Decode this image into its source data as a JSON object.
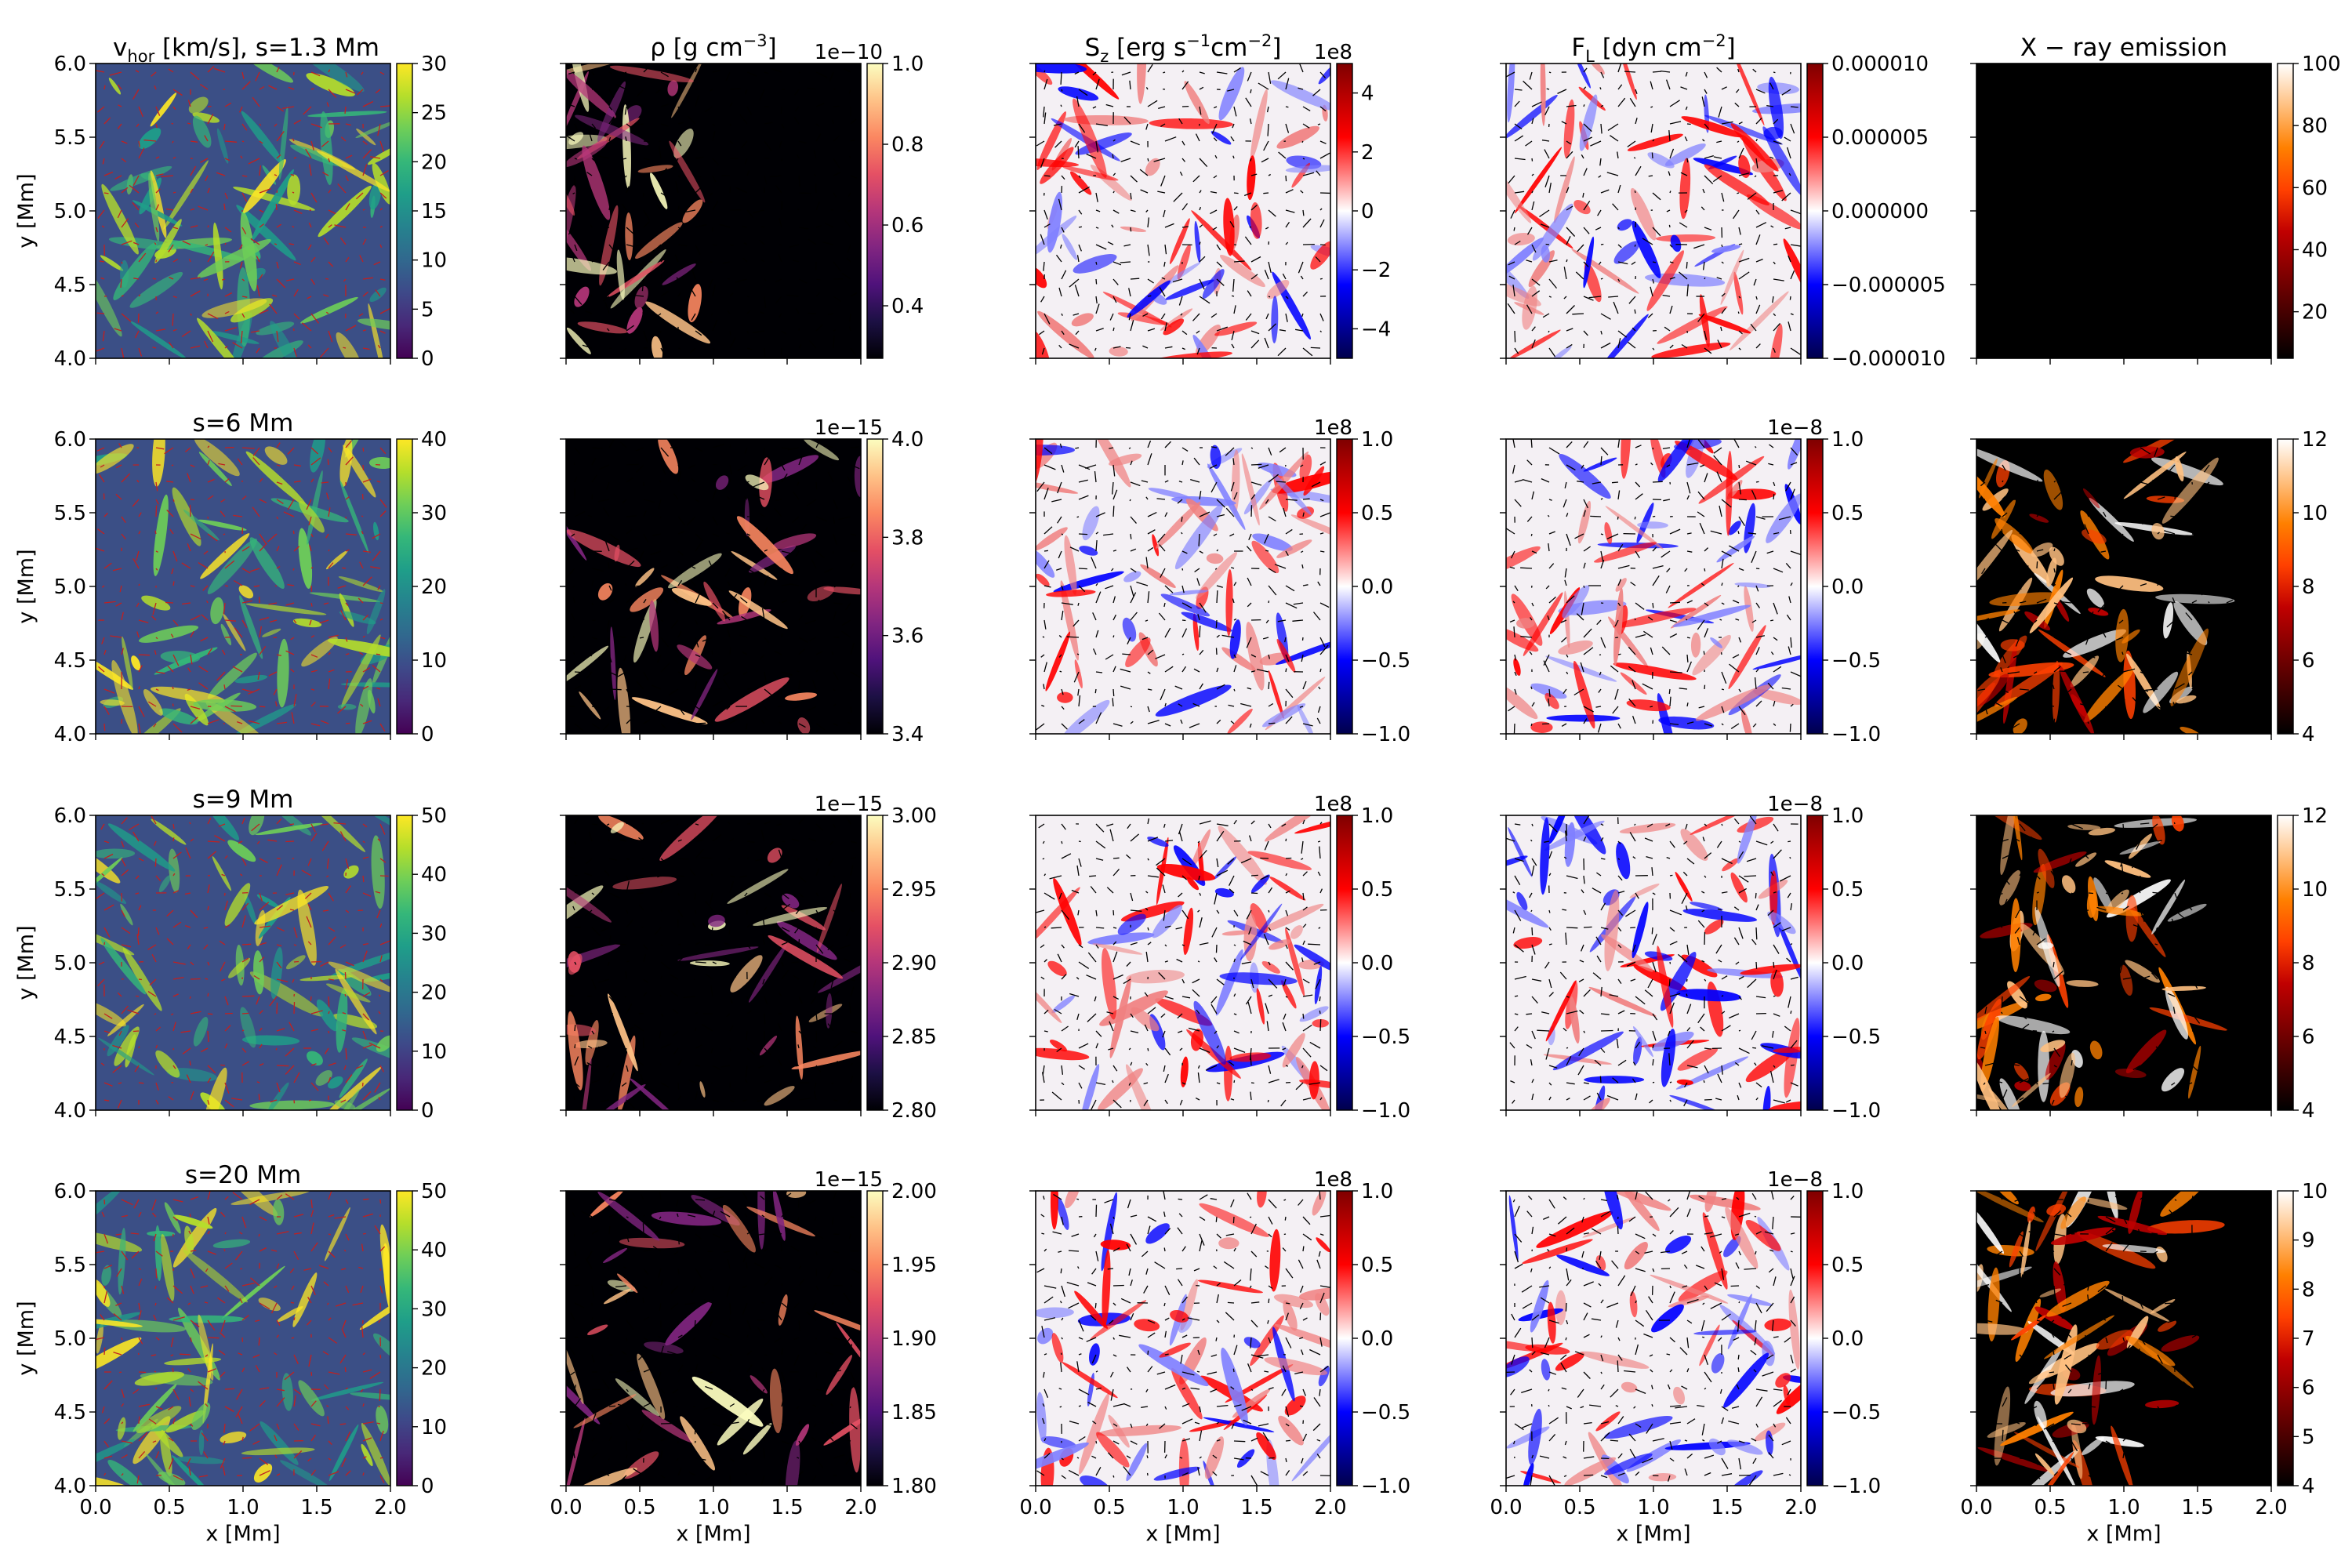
{
  "chart_data": {
    "type": "heatmap",
    "layout": "4 rows x 5 columns of 2D maps with colorbars and arrow overlays",
    "x_axis": {
      "label": "x [Mm]",
      "range": [
        0.0,
        2.0
      ],
      "ticks": [
        "0.0",
        "0.5",
        "1.0",
        "1.5",
        "2.0"
      ]
    },
    "y_axis": {
      "label": "y [Mm]",
      "range": [
        4.0,
        6.0
      ],
      "ticks": [
        "4.0",
        "4.5",
        "5.0",
        "5.5",
        "6.0"
      ]
    },
    "columns": [
      {
        "quantity": "v_hor",
        "title": "v",
        "title_sub": "hor",
        "title_rest": " [km/s],  s=1.3 Mm",
        "colormap": "viridis"
      },
      {
        "quantity": "rho",
        "title": "ρ [g cm",
        "title_sup": "−3",
        "title_rest": "]",
        "colormap": "magma"
      },
      {
        "quantity": "S_z",
        "title": "S",
        "title_sub": "z",
        "title_rest": " [erg s",
        "title_sup": "−1",
        "title_rest2": "cm",
        "title_sup2": "−2",
        "title_rest3": "]",
        "colormap": "seismic"
      },
      {
        "quantity": "F_L",
        "title": "F",
        "title_sub": "L",
        "title_rest": " [dyn cm",
        "title_sup": "−2",
        "title_rest2": "]",
        "colormap": "seismic"
      },
      {
        "quantity": "xray",
        "title": "X − ray emission",
        "colormap": "gist_heat"
      }
    ],
    "row_titles": [
      "",
      "s=6 Mm",
      "s=9 Mm",
      "s=20 Mm"
    ],
    "colorbars": [
      [
        {
          "ticks": [
            "0",
            "5",
            "10",
            "15",
            "20",
            "25",
            "30"
          ],
          "range": [
            0,
            30
          ],
          "exponent": ""
        },
        {
          "ticks": [
            "0.4",
            "0.6",
            "0.8",
            "1.0"
          ],
          "range": [
            0.27,
            1.0
          ],
          "exponent": "1e−10"
        },
        {
          "ticks": [
            "−4",
            "−2",
            "0",
            "2",
            "4"
          ],
          "range": [
            -5,
            5
          ],
          "exponent": "1e8"
        },
        {
          "ticks": [
            "−0.000010",
            "−0.000005",
            "0.000000",
            "0.000005",
            "0.000010"
          ],
          "range": [
            -1e-05,
            1e-05
          ],
          "exponent": ""
        },
        {
          "ticks": [
            "20",
            "40",
            "60",
            "80",
            "100"
          ],
          "range": [
            5,
            100
          ],
          "exponent": ""
        }
      ],
      [
        {
          "ticks": [
            "0",
            "10",
            "20",
            "30",
            "40"
          ],
          "range": [
            0,
            40
          ],
          "exponent": ""
        },
        {
          "ticks": [
            "3.4",
            "3.6",
            "3.8",
            "4.0"
          ],
          "range": [
            3.4,
            4.0
          ],
          "exponent": "1e−15"
        },
        {
          "ticks": [
            "−1.0",
            "−0.5",
            "0.0",
            "0.5",
            "1.0"
          ],
          "range": [
            -1,
            1
          ],
          "exponent": "1e8"
        },
        {
          "ticks": [
            "−1.0",
            "−0.5",
            "0.0",
            "0.5",
            "1.0"
          ],
          "range": [
            -1,
            1
          ],
          "exponent": "1e−8"
        },
        {
          "ticks": [
            "4",
            "6",
            "8",
            "10",
            "12"
          ],
          "range": [
            4,
            12
          ],
          "exponent": ""
        }
      ],
      [
        {
          "ticks": [
            "0",
            "10",
            "20",
            "30",
            "40",
            "50"
          ],
          "range": [
            0,
            50
          ],
          "exponent": ""
        },
        {
          "ticks": [
            "2.80",
            "2.85",
            "2.90",
            "2.95",
            "3.00"
          ],
          "range": [
            2.8,
            3.0
          ],
          "exponent": "1e−15"
        },
        {
          "ticks": [
            "−1.0",
            "−0.5",
            "0.0",
            "0.5",
            "1.0"
          ],
          "range": [
            -1,
            1
          ],
          "exponent": "1e8"
        },
        {
          "ticks": [
            "−1.0",
            "−0.5",
            "0.0",
            "0.5",
            "1.0"
          ],
          "range": [
            -1,
            1
          ],
          "exponent": "1e−8"
        },
        {
          "ticks": [
            "4",
            "6",
            "8",
            "10",
            "12"
          ],
          "range": [
            4,
            12
          ],
          "exponent": ""
        }
      ],
      [
        {
          "ticks": [
            "0",
            "10",
            "20",
            "30",
            "40",
            "50"
          ],
          "range": [
            0,
            50
          ],
          "exponent": ""
        },
        {
          "ticks": [
            "1.80",
            "1.85",
            "1.90",
            "1.95",
            "2.00"
          ],
          "range": [
            1.8,
            2.0
          ],
          "exponent": "1e−15"
        },
        {
          "ticks": [
            "−1.0",
            "−0.5",
            "0.0",
            "0.5",
            "1.0"
          ],
          "range": [
            -1,
            1
          ],
          "exponent": "1e8"
        },
        {
          "ticks": [
            "−1.0",
            "−0.5",
            "0.0",
            "0.5",
            "1.0"
          ],
          "range": [
            -1,
            1
          ],
          "exponent": "1e−8"
        },
        {
          "ticks": [
            "4",
            "5",
            "6",
            "7",
            "8",
            "9",
            "10"
          ],
          "range": [
            4,
            10
          ],
          "exponent": ""
        }
      ]
    ],
    "arrow_overlay": true,
    "grid": false
  }
}
